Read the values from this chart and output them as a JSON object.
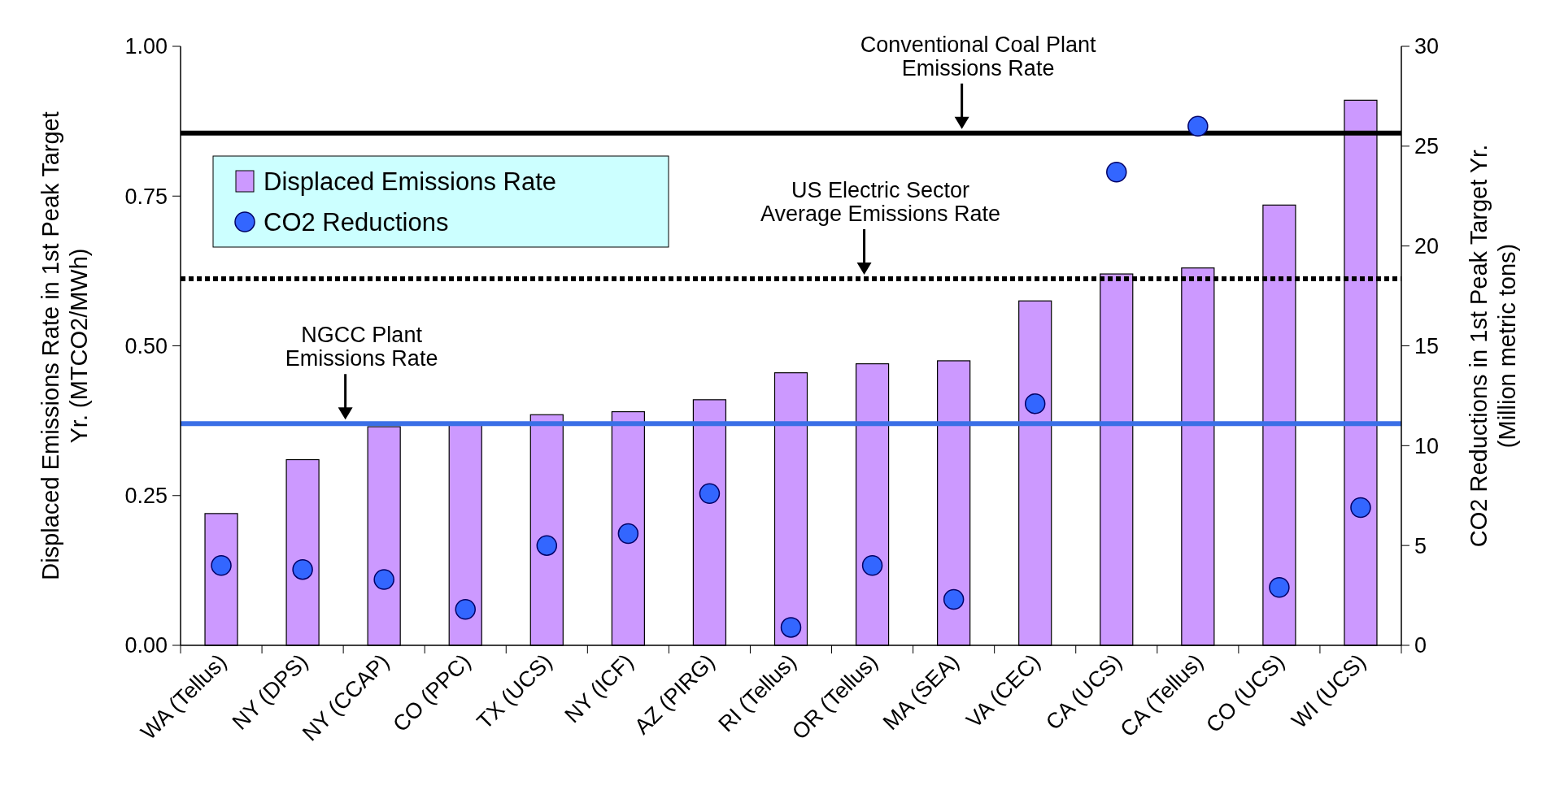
{
  "chart_data": {
    "type": "bar",
    "categories": [
      "WA (Tellus)",
      "NY (DPS)",
      "NY (CCAP)",
      "CO (PPC)",
      "TX (UCS)",
      "NY (ICF)",
      "AZ (PIRG)",
      "RI (Tellus)",
      "OR (Tellus)",
      "MA (SEA)",
      "VA (CEC)",
      "CA (UCS)",
      "CA (Tellus)",
      "CO (UCS)",
      "WI (UCS)"
    ],
    "ylabel": "Displaced Emissions Rate in 1st Peak Target\nYr. (MTCO2/MWh)",
    "y2label": "CO2 Reductions in 1st Peak Target Yr.\n(Million metric tons)",
    "ylim": [
      0,
      1
    ],
    "yticks": [
      {
        "value": 0,
        "label": "0.00"
      },
      {
        "value": 0.25,
        "label": "0.25"
      },
      {
        "value": 0.5,
        "label": "0.50"
      },
      {
        "value": 0.75,
        "label": "0.75"
      },
      {
        "value": 1,
        "label": "1.00"
      }
    ],
    "y2lim": [
      0,
      30
    ],
    "y2ticks": [
      0,
      5,
      10,
      15,
      20,
      25,
      30
    ],
    "series": [
      {
        "name": "Displaced Emissions Rate",
        "color": "#cc99ff",
        "values": [
          0.22,
          0.31,
          0.365,
          0.37,
          0.385,
          0.39,
          0.41,
          0.455,
          0.47,
          0.475,
          0.575,
          0.62,
          0.63,
          0.735,
          0.91
        ]
      },
      {
        "name": "CO2 Reductions",
        "type": "scatter",
        "axis": "y2",
        "color": "#3366ff",
        "marker": "circle",
        "values": [
          4.0,
          3.8,
          3.3,
          1.8,
          5.0,
          5.6,
          7.6,
          0.9,
          4.0,
          2.3,
          12.1,
          23.7,
          26.0,
          2.9,
          6.9
        ]
      }
    ],
    "ref_lines": [
      {
        "axis": "y",
        "value": 0.855,
        "label": "Conventional Coal Plant\nEmissions Rate",
        "color": "#000000",
        "line_style": "solid"
      },
      {
        "axis": "y",
        "value": 0.612,
        "label": "US Electric Sector\nAverage Emissions Rate",
        "color": "#000000",
        "line_style": "dotted"
      },
      {
        "axis": "y",
        "value": 0.37,
        "label": "NGCC Plant\nEmissions Rate",
        "color": "#3b6fe6",
        "line_style": "solid"
      }
    ],
    "legend": "top left",
    "grid": false
  }
}
